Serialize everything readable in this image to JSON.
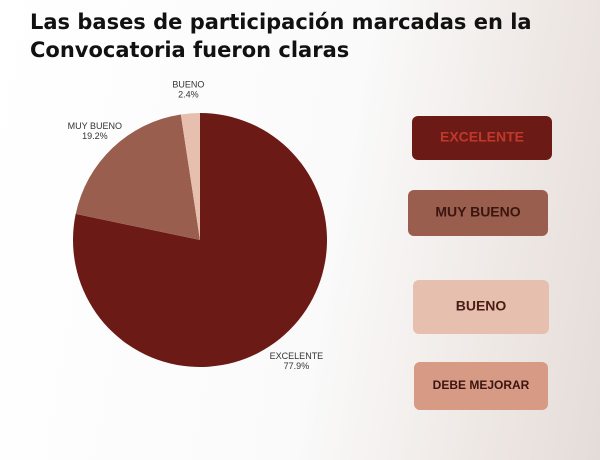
{
  "chart_data": {
    "type": "pie",
    "title": "Las bases de participación marcadas en la Convocatoria fueron claras",
    "categories": [
      "EXCELENTE",
      "MUY BUENO",
      "BUENO",
      "DEBE MEJORAR"
    ],
    "values": [
      77.9,
      19.2,
      2.4,
      0
    ],
    "value_labels": [
      "77.9%",
      "19.2%",
      "2.4%",
      null
    ],
    "colors": [
      "#6b1a16",
      "#9a5e4e",
      "#e6bfae",
      "#d69a85"
    ],
    "legend": "right"
  }
}
